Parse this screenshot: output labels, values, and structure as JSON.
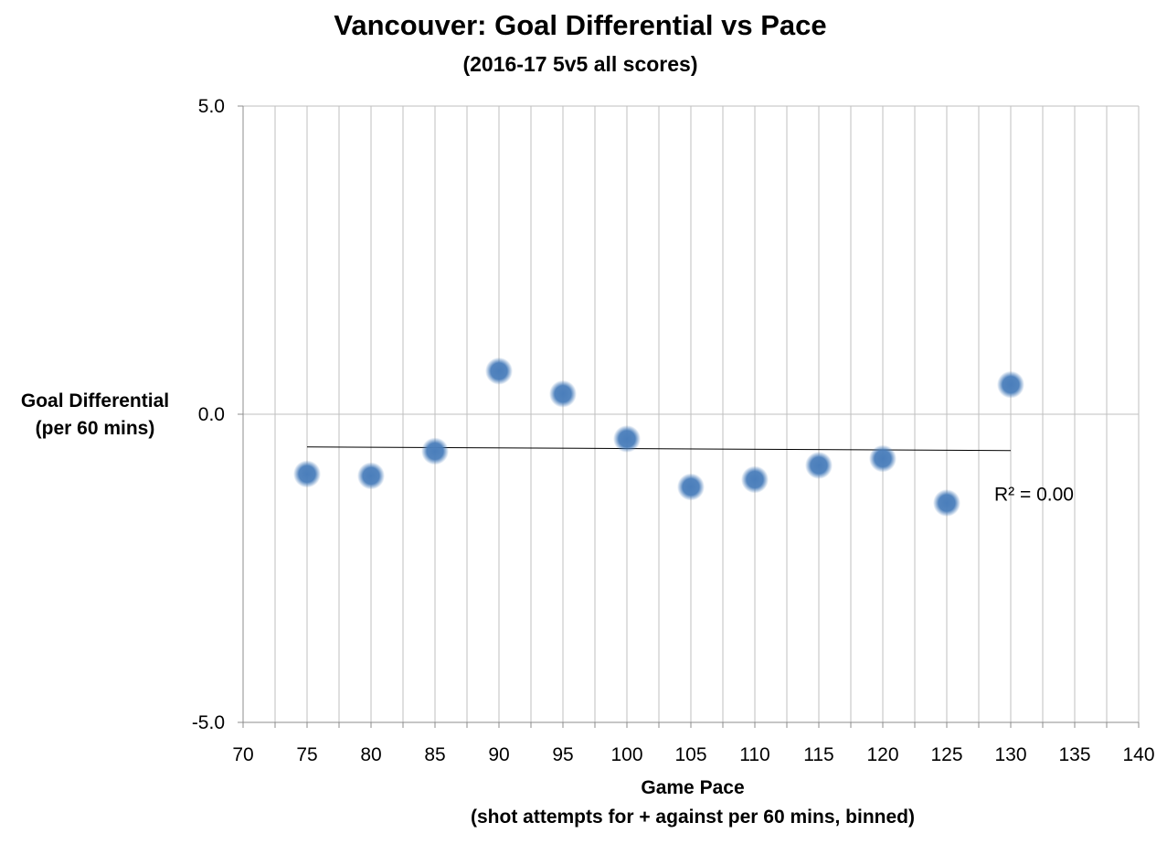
{
  "chart_data": {
    "type": "scatter",
    "title": "Vancouver: Goal Differential vs Pace",
    "subtitle": "(2016-17 5v5 all scores)",
    "ylabel_line1": "Goal Differential",
    "ylabel_line2": "(per 60 mins)",
    "xlabel_line1": "Game Pace",
    "xlabel_line2": "(shot attempts for + against per 60 mins, binned)",
    "xlim": [
      70,
      140
    ],
    "ylim": [
      -5.0,
      5.0
    ],
    "x_ticks": [
      70,
      75,
      80,
      85,
      90,
      95,
      100,
      105,
      110,
      115,
      120,
      125,
      130,
      135,
      140
    ],
    "x_tick_labels": [
      "70",
      "75",
      "80",
      "85",
      "90",
      "95",
      "100",
      "105",
      "110",
      "115",
      "120",
      "125",
      "130",
      "135",
      "140"
    ],
    "y_ticks": [
      -5.0,
      0.0,
      5.0
    ],
    "y_tick_labels": [
      "-5.0",
      "0.0",
      "5.0"
    ],
    "grid": "vertical lines every 2.5, horizontal at y ticks",
    "series": [
      {
        "name": "Vancouver",
        "color": "#4a7ebb",
        "x": [
          75,
          80,
          85,
          90,
          95,
          100,
          105,
          110,
          115,
          120,
          125,
          130
        ],
        "y": [
          -0.97,
          -1.0,
          -0.6,
          0.7,
          0.33,
          -0.4,
          -1.18,
          -1.06,
          -0.83,
          -0.72,
          -1.44,
          0.48
        ]
      }
    ],
    "trendline": {
      "x_start": 75,
      "y_start": -0.53,
      "x_end": 130,
      "y_end": -0.59,
      "label": "R² = 0.00"
    }
  }
}
